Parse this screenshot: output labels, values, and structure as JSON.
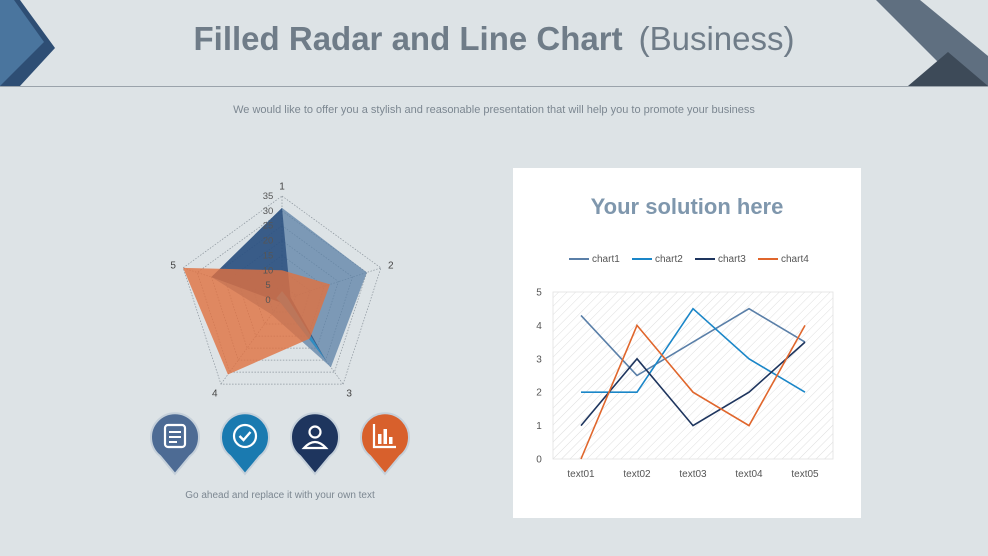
{
  "header": {
    "title": "Filled Radar and Line Chart",
    "title_suffix": "(Business)",
    "subtitle": "We would like to offer you a stylish and reasonable presentation that will help you to promote your business"
  },
  "icons": [
    {
      "name": "document-icon",
      "color": "#4d6b94"
    },
    {
      "name": "checkmark-icon",
      "color": "#1a7ab0"
    },
    {
      "name": "user-icon",
      "color": "#1e355e"
    },
    {
      "name": "bar-chart-icon",
      "color": "#d8602c"
    }
  ],
  "caption": "Go ahead and replace it with your own text",
  "line_card": {
    "title": "Your solution here"
  },
  "chart_data": [
    {
      "type": "radar",
      "filled": true,
      "axes": [
        "1",
        "2",
        "3",
        "4",
        "5"
      ],
      "rlim": [
        0,
        35
      ],
      "rticks": [
        0,
        5,
        10,
        15,
        20,
        25,
        30,
        35
      ],
      "series": [
        {
          "values": [
            31,
            30,
            28,
            6,
            25
          ],
          "color": "#5b80a6",
          "opacity": 0.75
        },
        {
          "values": [
            31,
            3,
            25,
            1,
            25
          ],
          "color": "#1d4275",
          "opacity": 0.7
        },
        {
          "values": [
            3,
            2,
            25,
            1,
            2
          ],
          "color": "#2f9fd6",
          "opacity": 0.75
        },
        {
          "values": [
            10,
            17,
            16,
            31,
            35
          ],
          "color": "#e07040",
          "opacity": 0.8
        }
      ]
    },
    {
      "type": "line",
      "categories": [
        "text01",
        "text02",
        "text03",
        "text04",
        "text05"
      ],
      "ylim": [
        0,
        5
      ],
      "yticks": [
        0,
        1,
        2,
        3,
        4,
        5
      ],
      "legend": "top",
      "series": [
        {
          "name": "chart1",
          "values": [
            4.3,
            2.5,
            3.5,
            4.5,
            3.5
          ],
          "color": "#5a7fa8"
        },
        {
          "name": "chart2",
          "values": [
            2,
            2,
            4.5,
            3,
            2
          ],
          "color": "#1a86c8"
        },
        {
          "name": "chart3",
          "values": [
            1,
            3,
            1,
            2,
            3.5
          ],
          "color": "#1e355e"
        },
        {
          "name": "chart4",
          "values": [
            0,
            4,
            2,
            1,
            4
          ],
          "color": "#e0662c"
        }
      ]
    }
  ]
}
